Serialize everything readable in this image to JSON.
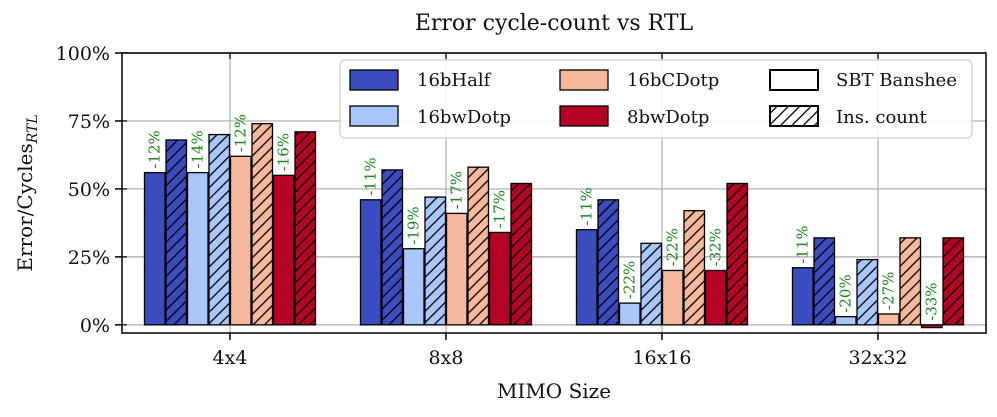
{
  "chart_data": {
    "type": "bar",
    "title": "Error cycle-count vs RTL",
    "xlabel": "MIMO Size",
    "ylabel_main": "Error/Cycles",
    "ylabel_sub": "RTL",
    "ylim": [
      -3,
      100
    ],
    "yticks": [
      0,
      25,
      50,
      75,
      100
    ],
    "ytick_labels": [
      "0%",
      "25%",
      "50%",
      "75%",
      "100%"
    ],
    "categories": [
      "4x4",
      "8x8",
      "16x16",
      "32x32"
    ],
    "series": [
      {
        "name": "16bHalf",
        "color": "#3b4cc0",
        "banshee": [
          56,
          46,
          35,
          21
        ],
        "inscount": [
          68,
          57,
          46,
          32
        ],
        "labels": [
          "-12%",
          "-11%",
          "-11%",
          "-11%"
        ]
      },
      {
        "name": "16bwDotp",
        "color": "#aac7fd",
        "banshee": [
          56,
          28,
          8,
          3
        ],
        "inscount": [
          70,
          47,
          30,
          24
        ],
        "labels": [
          "-14%",
          "-19%",
          "-22%",
          "-20%"
        ]
      },
      {
        "name": "16bCDotp",
        "color": "#f7b89c",
        "banshee": [
          62,
          41,
          20,
          4
        ],
        "inscount": [
          74,
          58,
          42,
          32
        ],
        "labels": [
          "-12%",
          "-17%",
          "-22%",
          "-27%"
        ]
      },
      {
        "name": "8bwDotp",
        "color": "#b40426",
        "banshee": [
          55,
          34,
          20,
          -1
        ],
        "inscount": [
          71,
          52,
          52,
          32
        ],
        "labels": [
          "-16%",
          "-17%",
          "-32%",
          "-33%"
        ]
      }
    ],
    "legend": {
      "position": "top-right",
      "style_entries": [
        "SBT Banshee",
        "Ins. count"
      ]
    },
    "grid": true
  }
}
